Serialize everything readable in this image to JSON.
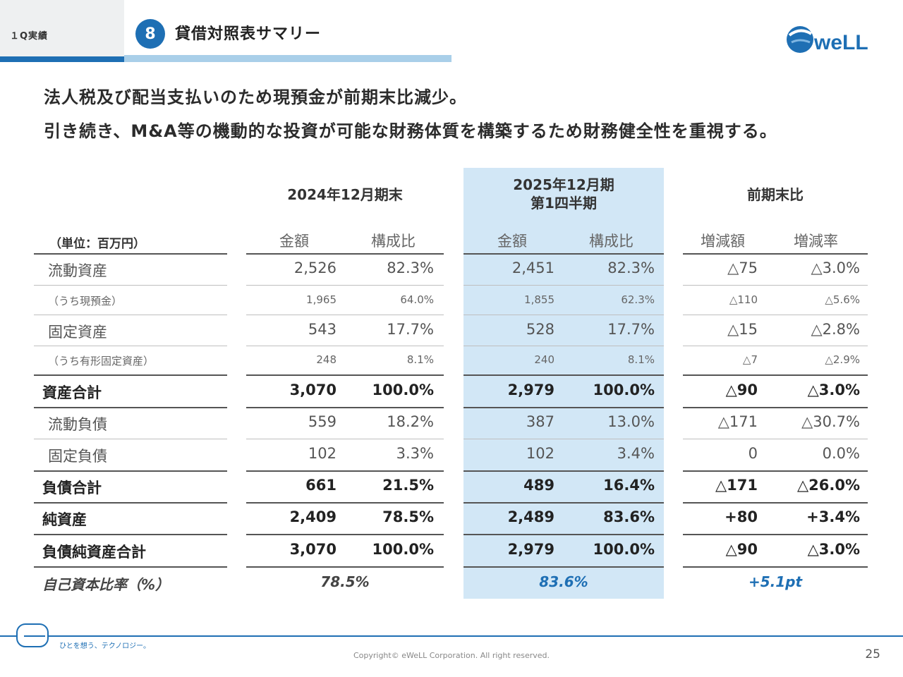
{
  "header": {
    "section": "１Q実績",
    "number": "8",
    "title": "貸借対照表サマリー",
    "logo_text": "weLL"
  },
  "messages": {
    "line1": "法人税及び配当支払いのため現預金が前期末比減少。",
    "line2": "引き続き、M&A等の機動的な投資が可能な財務体質を構築するため財務健全性を重視する。"
  },
  "table": {
    "unit_label": "（単位：百万円）",
    "groups": {
      "g1": "2024年12月期末",
      "g2_line1": "2025年12月期",
      "g2_line2": "第1四半期",
      "g3": "前期末比"
    },
    "subheaders": {
      "amount1": "金額",
      "ratio1": "構成比",
      "amount2": "金額",
      "ratio2": "構成比",
      "diff": "増減額",
      "rate": "増減率"
    },
    "rows": [
      {
        "label": "流動資産",
        "v1": "2,526",
        "r1": "82.3%",
        "v2": "2,451",
        "r2": "82.3%",
        "d": "△75",
        "dr": "△3.0%"
      },
      {
        "label": "（うち現預金）",
        "v1": "1,965",
        "r1": "64.0%",
        "v2": "1,855",
        "r2": "62.3%",
        "d": "△110",
        "dr": "△5.6%"
      },
      {
        "label": "固定資産",
        "v1": "543",
        "r1": "17.7%",
        "v2": "528",
        "r2": "17.7%",
        "d": "△15",
        "dr": "△2.8%"
      },
      {
        "label": "（うち有形固定資産）",
        "v1": "248",
        "r1": "8.1%",
        "v2": "240",
        "r2": "8.1%",
        "d": "△7",
        "dr": "△2.9%"
      },
      {
        "label": "資産合計",
        "v1": "3,070",
        "r1": "100.0%",
        "v2": "2,979",
        "r2": "100.0%",
        "d": "△90",
        "dr": "△3.0%"
      },
      {
        "label": "流動負債",
        "v1": "559",
        "r1": "18.2%",
        "v2": "387",
        "r2": "13.0%",
        "d": "△171",
        "dr": "△30.7%"
      },
      {
        "label": "固定負債",
        "v1": "102",
        "r1": "3.3%",
        "v2": "102",
        "r2": "3.4%",
        "d": "0",
        "dr": "0.0%"
      },
      {
        "label": "負債合計",
        "v1": "661",
        "r1": "21.5%",
        "v2": "489",
        "r2": "16.4%",
        "d": "△171",
        "dr": "△26.0%"
      },
      {
        "label": "純資産",
        "v1": "2,409",
        "r1": "78.5%",
        "v2": "2,489",
        "r2": "83.6%",
        "d": "+80",
        "dr": "+3.4%"
      },
      {
        "label": "負債純資産合計",
        "v1": "3,070",
        "r1": "100.0%",
        "v2": "2,979",
        "r2": "100.0%",
        "d": "△90",
        "dr": "△3.0%"
      }
    ],
    "equity_ratio": {
      "label": "自己資本比率（%）",
      "v1": "78.5%",
      "v2": "83.6%",
      "diff": "+5.1pt"
    }
  },
  "footer": {
    "tagline": "ひとを想う、テクノロジー。",
    "copyright": "Copyright© eWeLL Corporation. All right reserved.",
    "page": "25"
  },
  "colors": {
    "brand_blue": "#1e6fb4",
    "light_blue_bar": "#a9cfe9",
    "highlight": "#d2e7f6"
  }
}
